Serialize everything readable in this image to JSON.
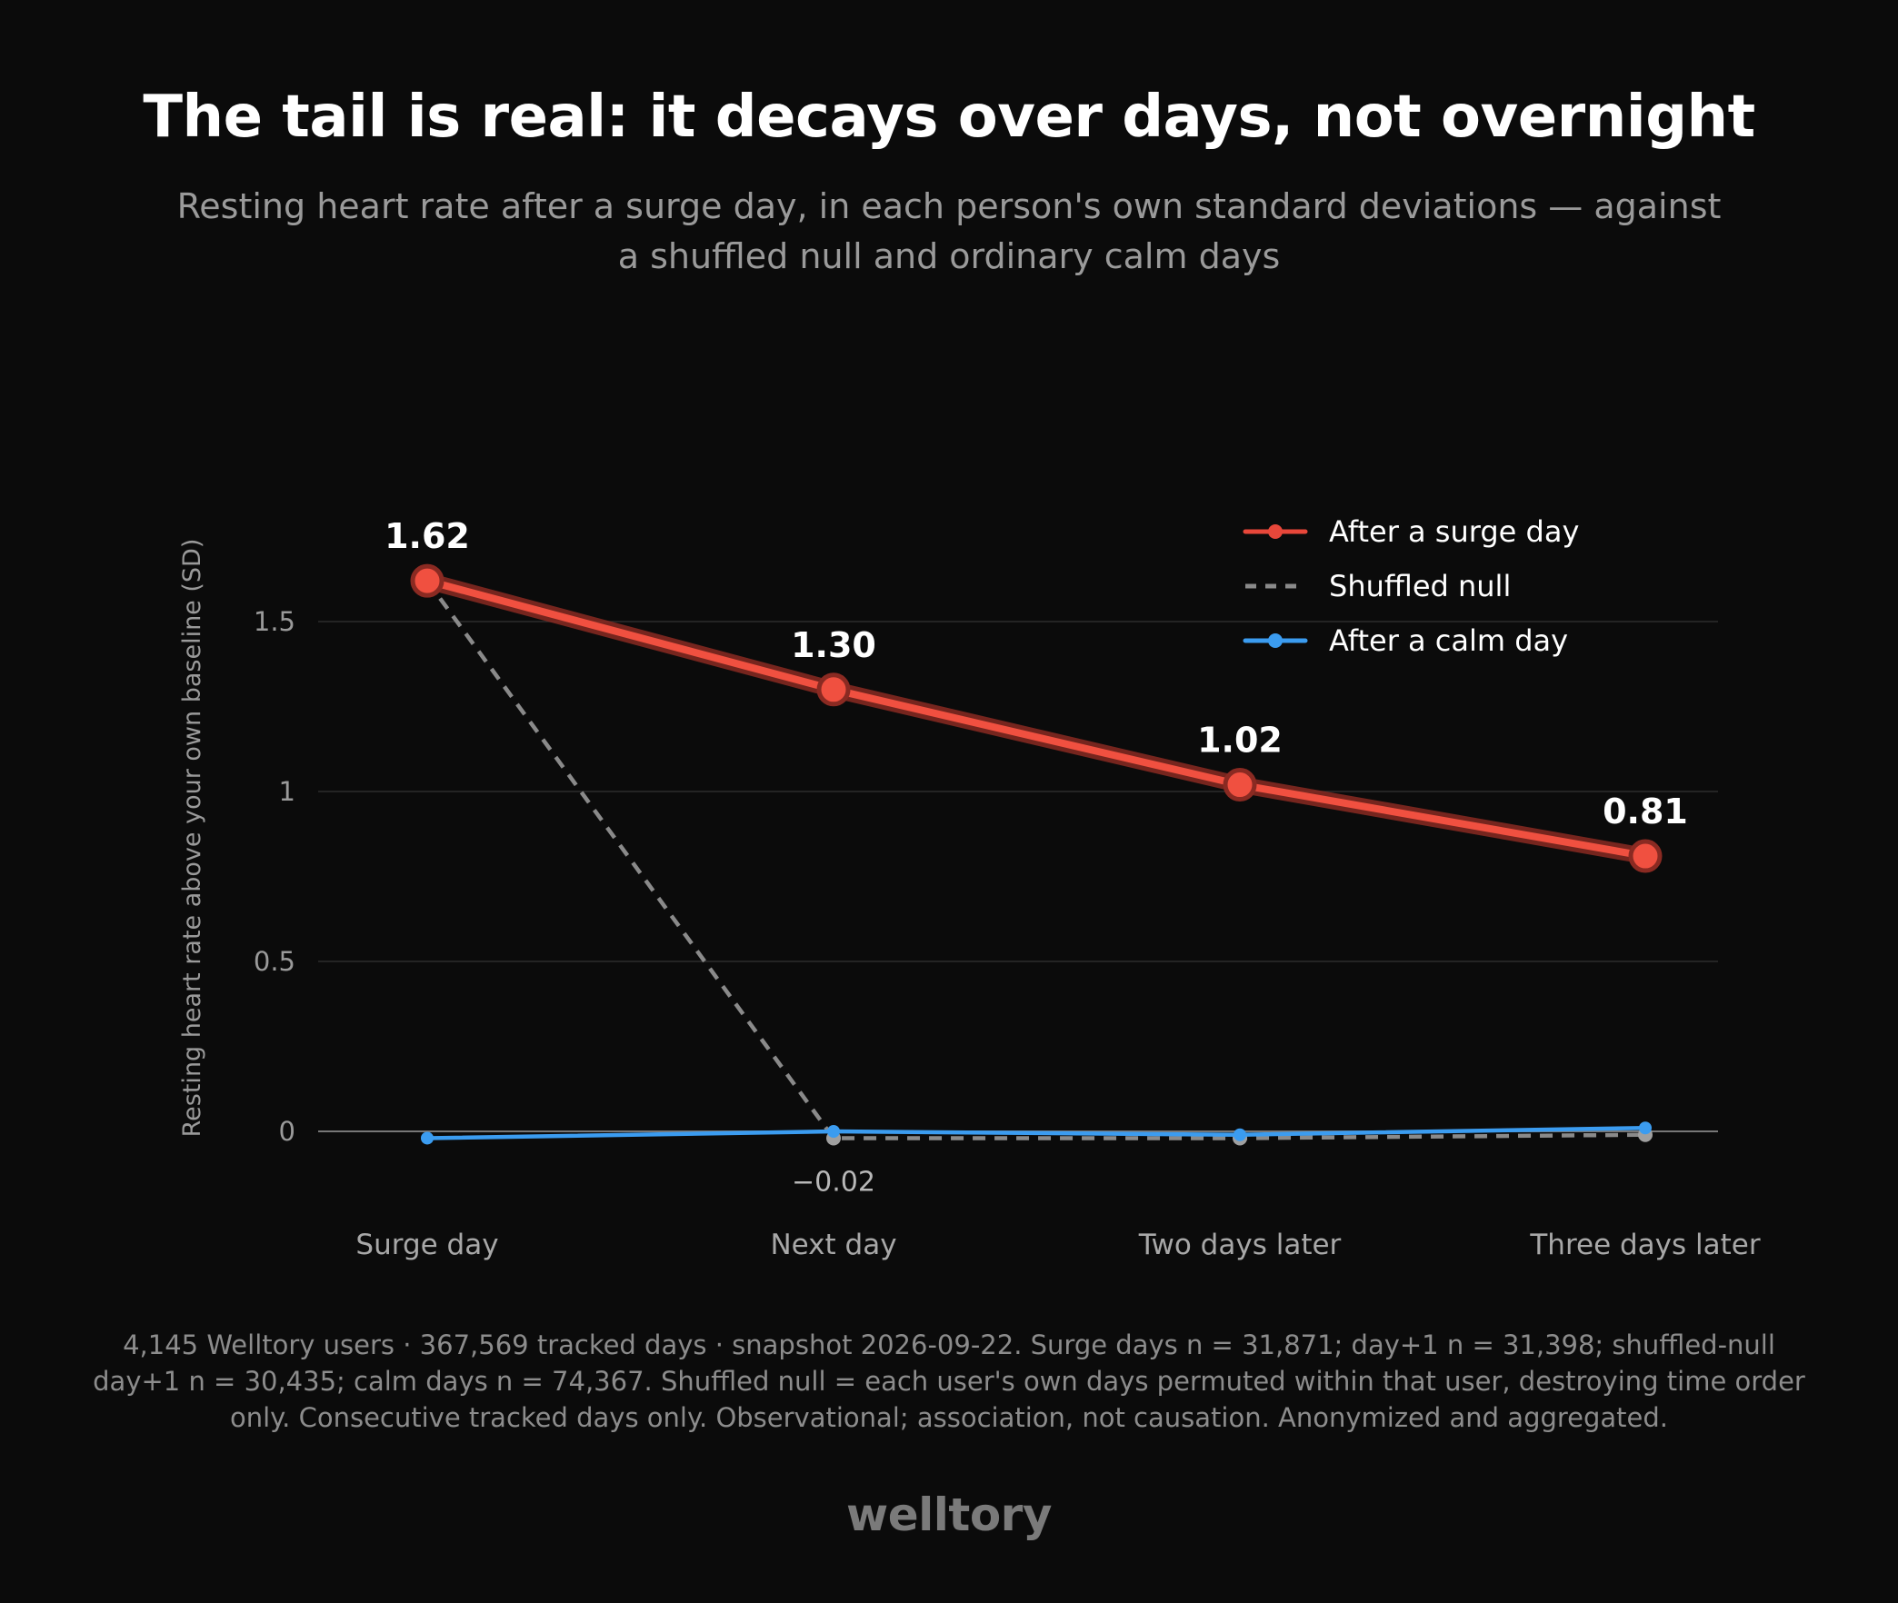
{
  "header": {
    "title": "The tail is real: it decays over days, not overnight",
    "subtitle": "Resting heart rate after a surge day, in each person's own standard deviations — against a shuffled null and ordinary calm days"
  },
  "chart_data": {
    "type": "line",
    "ylabel": "Resting heart rate above your own baseline (SD)",
    "xlabel": "",
    "categories": [
      "Surge day",
      "Next day",
      "Two days later",
      "Three days later"
    ],
    "ylim": [
      -0.1,
      1.75
    ],
    "yticks": [
      0,
      0.5,
      1,
      1.5
    ],
    "ytick_labels": [
      "0",
      "0.5",
      "1",
      "1.5"
    ],
    "grid": true,
    "legend_position": "top-right",
    "series": [
      {
        "name": "After a surge day",
        "values": [
          1.62,
          1.3,
          1.02,
          0.81
        ],
        "color": "#e8473a",
        "style": "solid",
        "labels": [
          "1.62",
          "1.30",
          "1.02",
          "0.81"
        ]
      },
      {
        "name": "Shuffled null",
        "values": [
          1.62,
          -0.02,
          -0.02,
          -0.01
        ],
        "color": "#8a8a8a",
        "style": "dashed",
        "labels": [
          "",
          "−0.02",
          "",
          ""
        ]
      },
      {
        "name": "After a calm day",
        "values": [
          -0.02,
          0.0,
          -0.01,
          0.01
        ],
        "color": "#3b9cf0",
        "style": "solid",
        "labels": [
          "",
          "",
          "",
          ""
        ]
      }
    ]
  },
  "footnote": "4,145 Welltory users · 367,569 tracked days · snapshot 2026-09-22. Surge days n = 31,871; day+1 n = 31,398; shuffled-null day+1 n = 30,435; calm days n = 74,367. Shuffled null = each user's own days permuted within that user, destroying time order only. Consecutive tracked days only. Observational; association, not causation. Anonymized and aggregated.",
  "brand": "welltory"
}
